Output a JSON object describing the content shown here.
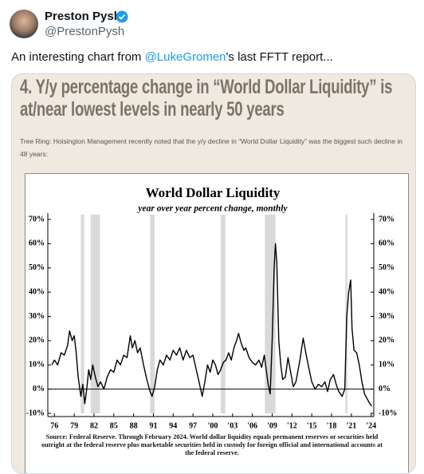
{
  "tweet": {
    "name": "Preston Pysh",
    "handle": "@PrestonPysh",
    "text_before": "An interesting chart from ",
    "mention": "@LukeGromen",
    "text_after": "'s last FFTT report...",
    "image": {
      "heading": "4. Y/y percentage change in “World Dollar Liquidity” is at/near lowest levels in nearly 50 years",
      "caption": "Tree Ring: Hoisington Management recently noted that the y/y decline in “World Dollar Liquidity” was the biggest such decline in 48 years:"
    }
  },
  "chart_data": {
    "type": "line",
    "title": "World Dollar Liquidity",
    "subtitle": "year over year percent change, monthly",
    "source": "Source: Federal Reserve. Through February 2024. World dollar liquidity equals permanent reserves or securities held outright at the federal reserve plus marketable securities held in custody for foreign official and international accounts at the federal reserve.",
    "color": "#000000",
    "x": [
      1975.6,
      1976,
      1976.5,
      1977,
      1977.5,
      1978,
      1978.3,
      1978.7,
      1979,
      1979.3,
      1979.6,
      1980,
      1980.3,
      1980.6,
      1980.9,
      1981.2,
      1981.5,
      1981.8,
      1982.2,
      1982.6,
      1983,
      1983.5,
      1984,
      1984.5,
      1985,
      1985.5,
      1986,
      1986.5,
      1987,
      1987.5,
      1987.8,
      1988.2,
      1988.6,
      1989,
      1989.5,
      1990,
      1990.5,
      1990.8,
      1991.2,
      1991.6,
      1992,
      1992.5,
      1993,
      1993.5,
      1994,
      1994.5,
      1995,
      1995.5,
      1996,
      1996.5,
      1997,
      1997.5,
      1998,
      1998.4,
      1998.8,
      1999.2,
      1999.6,
      2000,
      2000.4,
      2000.8,
      2001.2,
      2001.6,
      2002,
      2002.4,
      2002.8,
      2003.2,
      2003.6,
      2003.9,
      2004.3,
      2004.7,
      2005,
      2005.5,
      2006,
      2006.5,
      2007,
      2007.4,
      2007.8,
      2008.1,
      2008.4,
      2008.7,
      2009,
      2009.3,
      2009.5,
      2009.7,
      2010,
      2010.3,
      2010.6,
      2011,
      2011.4,
      2011.8,
      2012.2,
      2012.6,
      2013.2,
      2013.7,
      2014.1,
      2014.6,
      2015,
      2015.5,
      2016,
      2016.5,
      2017,
      2017.4,
      2017.8,
      2018.3,
      2018.7,
      2019.1,
      2019.6,
      2020,
      2020.3,
      2020.6,
      2020.9,
      2021.1,
      2021.4,
      2021.8,
      2022.2,
      2022.6,
      2023,
      2023.4,
      2023.8,
      2024.1
    ],
    "values": [
      10,
      12,
      10,
      15,
      14,
      18,
      24,
      20,
      22,
      15,
      5,
      -3,
      2,
      -6,
      0,
      8,
      4,
      10,
      5,
      1,
      3,
      0,
      5,
      8,
      7,
      12,
      10,
      14,
      13,
      22,
      17,
      20,
      15,
      17,
      10,
      4,
      -1,
      -3,
      1,
      8,
      12,
      10,
      14,
      12,
      16,
      14,
      17,
      12,
      16,
      13,
      14,
      8,
      2,
      -3,
      3,
      10,
      7,
      12,
      10,
      6,
      8,
      11,
      12,
      15,
      12,
      17,
      20,
      23,
      19,
      16,
      17,
      13,
      11,
      10,
      12,
      9,
      14,
      8,
      2,
      -2,
      20,
      50,
      60,
      52,
      20,
      10,
      4,
      5,
      13,
      7,
      1,
      3,
      12,
      21,
      15,
      8,
      3,
      0,
      2,
      1,
      3,
      -1,
      4,
      6,
      2,
      -1,
      -3,
      0,
      30,
      40,
      45,
      25,
      16,
      15,
      10,
      3,
      -2,
      -4,
      -6,
      -7
    ],
    "recessions": [
      [
        1980,
        1980.5
      ],
      [
        1981.5,
        1982.9
      ],
      [
        1990.5,
        1991.2
      ],
      [
        2001.2,
        2001.9
      ],
      [
        2007.9,
        2009.5
      ],
      [
        2020.1,
        2020.4
      ]
    ],
    "xlim": [
      1975,
      2024.4
    ],
    "xticks": [
      {
        "value": 1976,
        "label": "76"
      },
      {
        "value": 1979,
        "label": "79"
      },
      {
        "value": 1982,
        "label": "82"
      },
      {
        "value": 1985,
        "label": "85"
      },
      {
        "value": 1988,
        "label": "88"
      },
      {
        "value": 1991,
        "label": "91"
      },
      {
        "value": 1994,
        "label": "94"
      },
      {
        "value": 1997,
        "label": "97"
      },
      {
        "value": 2000,
        "label": "'00"
      },
      {
        "value": 2003,
        "label": "'03"
      },
      {
        "value": 2006,
        "label": "'06"
      },
      {
        "value": 2009,
        "label": "'09"
      },
      {
        "value": 2012,
        "label": "'12"
      },
      {
        "value": 2015,
        "label": "'15"
      },
      {
        "value": 2018,
        "label": "'18"
      },
      {
        "value": 2021,
        "label": "'21"
      },
      {
        "value": 2024,
        "label": "'24"
      }
    ],
    "ylim": [
      -10,
      70
    ],
    "yticks": [
      {
        "value": 70,
        "label": "70%"
      },
      {
        "value": 60,
        "label": "60%"
      },
      {
        "value": 50,
        "label": "50%"
      },
      {
        "value": 40,
        "label": "40%"
      },
      {
        "value": 30,
        "label": "30%"
      },
      {
        "value": 20,
        "label": "20%"
      },
      {
        "value": 10,
        "label": "10%"
      },
      {
        "value": 0,
        "label": "0%"
      },
      {
        "value": -10,
        "label": "-10%"
      }
    ],
    "y2lim": [
      -10,
      70
    ],
    "y2ticks": [
      {
        "value": 70,
        "label": "70%"
      },
      {
        "value": 60,
        "label": "60%"
      },
      {
        "value": 50,
        "label": "50%"
      },
      {
        "value": 40,
        "label": "40%"
      },
      {
        "value": 30,
        "label": "30%"
      },
      {
        "value": 20,
        "label": "20%"
      },
      {
        "value": 10,
        "label": "10%"
      },
      {
        "value": 0,
        "label": "0%"
      },
      {
        "value": -10,
        "label": "-10%"
      }
    ]
  }
}
